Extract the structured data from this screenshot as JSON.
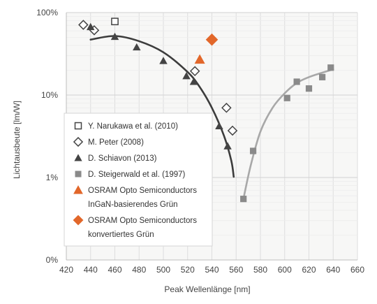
{
  "chart_data": {
    "type": "scatter",
    "xlabel": "Peak Wellenlänge [nm]",
    "ylabel": "Lichtausbeute [lm/W]",
    "xlim": [
      420,
      660
    ],
    "ylim": [
      0.1,
      100
    ],
    "y_scale": "log",
    "x_ticks": [
      420,
      440,
      460,
      480,
      500,
      520,
      540,
      560,
      580,
      600,
      620,
      640,
      660
    ],
    "y_ticks": [
      {
        "value": 0.1,
        "label": "0%"
      },
      {
        "value": 1,
        "label": "1%"
      },
      {
        "value": 10,
        "label": "10%"
      },
      {
        "value": 100,
        "label": "100%"
      }
    ],
    "grid": true,
    "legend_position": "bottom-left",
    "series": [
      {
        "name": "Y. Narukawa et al. (2010)",
        "marker": "open-square",
        "color": "#444444",
        "points": [
          [
            460,
            78
          ]
        ]
      },
      {
        "name": "M. Peter (2008)",
        "marker": "open-diamond",
        "color": "#444444",
        "points": [
          [
            434,
            71
          ],
          [
            443,
            61
          ],
          [
            526,
            19.5
          ],
          [
            552,
            7.0
          ],
          [
            557,
            3.7
          ]
        ]
      },
      {
        "name": "D. Schiavon (2013)",
        "marker": "filled-triangle",
        "color": "#444444",
        "points": [
          [
            440,
            67
          ],
          [
            460,
            51
          ],
          [
            478,
            38
          ],
          [
            500,
            26
          ],
          [
            519,
            17
          ],
          [
            525,
            14.5
          ],
          [
            546,
            4.2
          ],
          [
            553,
            2.4
          ]
        ]
      },
      {
        "name": "D. Steigerwald et al. (1997)",
        "marker": "filled-square",
        "color": "#8a8a8a",
        "points": [
          [
            566,
            0.55
          ],
          [
            574,
            2.1
          ],
          [
            602,
            9.2
          ],
          [
            610,
            14.5
          ],
          [
            620,
            12.0
          ],
          [
            631,
            16.5
          ],
          [
            638,
            21.5
          ]
        ]
      },
      {
        "name": "OSRAM Opto Semiconductors",
        "name_line2": "InGaN-basierendes Grün",
        "marker": "filled-triangle",
        "color": "#e2672a",
        "points": [
          [
            530,
            27
          ]
        ]
      },
      {
        "name": "OSRAM Opto Semiconductors",
        "name_line2": "konvertiertes Grün",
        "marker": "filled-diamond",
        "color": "#e2672a",
        "points": [
          [
            540,
            47
          ]
        ]
      }
    ],
    "trend_lines": [
      {
        "color": "#3c3c3c",
        "points": [
          [
            440,
            47
          ],
          [
            460,
            52
          ],
          [
            480,
            45
          ],
          [
            500,
            33
          ],
          [
            520,
            19
          ],
          [
            530,
            12.5
          ],
          [
            540,
            7.0
          ],
          [
            550,
            3.2
          ],
          [
            556,
            1.6
          ],
          [
            558,
            1.02
          ]
        ]
      },
      {
        "color": "#a8a8a8",
        "points": [
          [
            566,
            0.55
          ],
          [
            572,
            1.4
          ],
          [
            580,
            3.6
          ],
          [
            590,
            7.0
          ],
          [
            600,
            10.5
          ],
          [
            610,
            14.0
          ],
          [
            620,
            16.5
          ],
          [
            630,
            18.5
          ],
          [
            640,
            20.5
          ]
        ]
      }
    ]
  }
}
